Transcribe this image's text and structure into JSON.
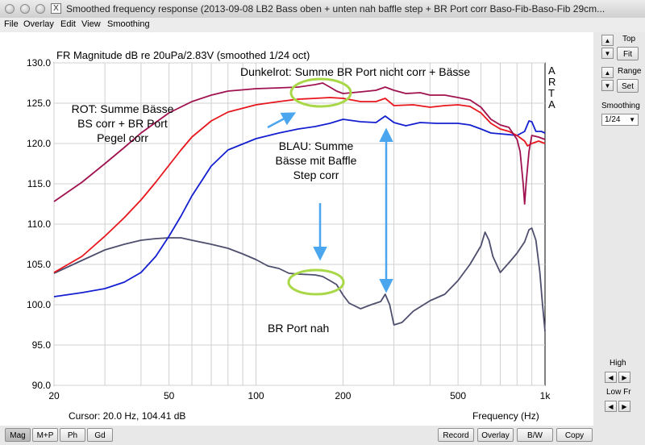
{
  "window": {
    "title": "Smoothed frequency response (2013-09-08 LB2 Bass oben + unten nah baffle step + BR Port corr Baso-Fib-Baso-Fib 29cm...",
    "app_icon": "X"
  },
  "menu": [
    "File",
    "Overlay",
    "Edit",
    "View",
    "Smoothing"
  ],
  "plot": {
    "heading": "FR Magnitude dB re 20uPa/2.83V (smoothed 1/24 oct)",
    "brand_letters": [
      "A",
      "R",
      "T",
      "A"
    ],
    "y_tick_labels": [
      "130.0",
      "125.0",
      "120.0",
      "115.0",
      "110.0",
      "105.0",
      "100.0",
      "95.0",
      "90.0"
    ],
    "x_tick_labels": [
      "20",
      "50",
      "100",
      "200",
      "500",
      "1k"
    ],
    "cursor_readout": "Cursor: 20.0 Hz, 104.41 dB",
    "x_axis_label": "Frequency (Hz)",
    "annotations": {
      "dunkelrot": "Dunkelrot: Summe BR Port nicht corr + Bässe",
      "rot": [
        "ROT: Summe Bässe",
        "BS corr + BR Port",
        "Pegel corr"
      ],
      "blau": [
        "BLAU: Summe",
        "Bässe mit Baffle",
        "Step corr"
      ],
      "port": "BR Port nah"
    }
  },
  "colors": {
    "darkred_curve": "#a0124f",
    "red_curve": "#e8161c",
    "blue_curve": "#1420d0",
    "port_curve": "#4e4e6e",
    "highlight_ellipse": "#a8d848",
    "annotation_arrow": "#4aa6ee"
  },
  "chart_data": {
    "type": "line",
    "x_scale": "log",
    "xlim": [
      20,
      1000
    ],
    "ylim": [
      90,
      130
    ],
    "grid": true,
    "title": "FR Magnitude dB re 20uPa/2.83V (smoothed 1/24 oct)",
    "xlabel": "Frequency (Hz)",
    "ylabel": "",
    "series": [
      {
        "name": "Dunkelrot: Summe BR Port nicht corr + Bässe",
        "color": "#a0124f",
        "points": [
          [
            20,
            112.8
          ],
          [
            25,
            115.2
          ],
          [
            30,
            117.5
          ],
          [
            35,
            119.5
          ],
          [
            40,
            121.3
          ],
          [
            50,
            123.8
          ],
          [
            60,
            125.2
          ],
          [
            70,
            126.0
          ],
          [
            80,
            126.5
          ],
          [
            100,
            126.8
          ],
          [
            120,
            126.9
          ],
          [
            140,
            127.0
          ],
          [
            160,
            127.3
          ],
          [
            170,
            127.5
          ],
          [
            180,
            127.0
          ],
          [
            190,
            126.5
          ],
          [
            200,
            126.2
          ],
          [
            230,
            126.4
          ],
          [
            260,
            126.6
          ],
          [
            280,
            127.0
          ],
          [
            300,
            126.6
          ],
          [
            330,
            126.2
          ],
          [
            370,
            126.3
          ],
          [
            400,
            126.0
          ],
          [
            450,
            126.0
          ],
          [
            500,
            125.7
          ],
          [
            550,
            125.4
          ],
          [
            600,
            124.5
          ],
          [
            650,
            123.0
          ],
          [
            700,
            122.3
          ],
          [
            750,
            122.0
          ],
          [
            800,
            120.5
          ],
          [
            820,
            119.0
          ],
          [
            840,
            115.0
          ],
          [
            850,
            112.5
          ],
          [
            860,
            115.0
          ],
          [
            880,
            119.0
          ],
          [
            900,
            121.0
          ],
          [
            950,
            120.8
          ],
          [
            1000,
            120.5
          ]
        ]
      },
      {
        "name": "ROT: Summe Bässe BS corr + BR Port Pegel corr",
        "color": "#e8161c",
        "points": [
          [
            20,
            104.0
          ],
          [
            25,
            106.0
          ],
          [
            30,
            108.5
          ],
          [
            35,
            110.8
          ],
          [
            40,
            113.0
          ],
          [
            45,
            115.2
          ],
          [
            50,
            117.3
          ],
          [
            55,
            119.2
          ],
          [
            60,
            120.8
          ],
          [
            70,
            122.8
          ],
          [
            80,
            123.9
          ],
          [
            100,
            124.8
          ],
          [
            120,
            125.2
          ],
          [
            140,
            125.5
          ],
          [
            160,
            125.6
          ],
          [
            180,
            125.7
          ],
          [
            200,
            125.6
          ],
          [
            230,
            125.2
          ],
          [
            260,
            125.2
          ],
          [
            280,
            125.6
          ],
          [
            300,
            124.7
          ],
          [
            350,
            124.8
          ],
          [
            400,
            124.5
          ],
          [
            450,
            124.7
          ],
          [
            500,
            124.8
          ],
          [
            550,
            124.6
          ],
          [
            600,
            123.8
          ],
          [
            650,
            122.5
          ],
          [
            700,
            121.8
          ],
          [
            750,
            121.5
          ],
          [
            800,
            121.0
          ],
          [
            850,
            120.3
          ],
          [
            870,
            119.7
          ],
          [
            900,
            120.0
          ],
          [
            950,
            120.3
          ],
          [
            1000,
            120.0
          ]
        ]
      },
      {
        "name": "BLAU: Summe Bässe mit Baffle Step corr",
        "color": "#1420d0",
        "points": [
          [
            20,
            101.0
          ],
          [
            25,
            101.5
          ],
          [
            30,
            102.0
          ],
          [
            35,
            102.8
          ],
          [
            40,
            104.0
          ],
          [
            45,
            106.0
          ],
          [
            50,
            108.5
          ],
          [
            55,
            111.0
          ],
          [
            60,
            113.5
          ],
          [
            70,
            117.2
          ],
          [
            80,
            119.2
          ],
          [
            100,
            120.6
          ],
          [
            120,
            121.3
          ],
          [
            140,
            121.8
          ],
          [
            160,
            122.1
          ],
          [
            180,
            122.5
          ],
          [
            200,
            123.0
          ],
          [
            230,
            122.7
          ],
          [
            260,
            122.6
          ],
          [
            280,
            123.4
          ],
          [
            300,
            122.6
          ],
          [
            330,
            122.2
          ],
          [
            370,
            122.6
          ],
          [
            420,
            122.5
          ],
          [
            500,
            122.5
          ],
          [
            550,
            122.3
          ],
          [
            600,
            121.8
          ],
          [
            650,
            121.3
          ],
          [
            700,
            121.2
          ],
          [
            750,
            121.1
          ],
          [
            800,
            121.0
          ],
          [
            850,
            121.5
          ],
          [
            880,
            122.8
          ],
          [
            900,
            122.7
          ],
          [
            930,
            121.5
          ],
          [
            970,
            121.5
          ],
          [
            1000,
            121.3
          ]
        ]
      },
      {
        "name": "BR Port nah",
        "color": "#4e4e6e",
        "points": [
          [
            20,
            103.9
          ],
          [
            25,
            105.5
          ],
          [
            30,
            106.8
          ],
          [
            35,
            107.5
          ],
          [
            40,
            108.0
          ],
          [
            45,
            108.2
          ],
          [
            50,
            108.3
          ],
          [
            55,
            108.3
          ],
          [
            60,
            108.0
          ],
          [
            70,
            107.5
          ],
          [
            80,
            107.0
          ],
          [
            90,
            106.3
          ],
          [
            100,
            105.6
          ],
          [
            110,
            104.8
          ],
          [
            120,
            104.5
          ],
          [
            130,
            103.9
          ],
          [
            140,
            103.8
          ],
          [
            160,
            103.7
          ],
          [
            170,
            103.5
          ],
          [
            180,
            103.0
          ],
          [
            190,
            102.5
          ],
          [
            200,
            101.2
          ],
          [
            210,
            100.2
          ],
          [
            230,
            99.5
          ],
          [
            250,
            100.0
          ],
          [
            270,
            100.4
          ],
          [
            280,
            101.3
          ],
          [
            290,
            100.0
          ],
          [
            300,
            97.5
          ],
          [
            320,
            97.8
          ],
          [
            350,
            99.2
          ],
          [
            400,
            100.5
          ],
          [
            450,
            101.3
          ],
          [
            500,
            103.0
          ],
          [
            550,
            105.0
          ],
          [
            600,
            107.3
          ],
          [
            620,
            109.0
          ],
          [
            640,
            108.0
          ],
          [
            660,
            106.0
          ],
          [
            700,
            104.0
          ],
          [
            750,
            105.2
          ],
          [
            800,
            106.4
          ],
          [
            850,
            107.8
          ],
          [
            880,
            109.3
          ],
          [
            900,
            109.5
          ],
          [
            930,
            108.0
          ],
          [
            960,
            104.0
          ],
          [
            980,
            100.0
          ],
          [
            1000,
            96.7
          ]
        ]
      }
    ]
  },
  "right_panel": {
    "top_label": "Top",
    "fit_label": "Fit",
    "range_label": "Range",
    "set_label": "Set",
    "smoothing_label": "Smoothing",
    "smoothing_value": "1/24",
    "high_label": "High",
    "lowfr_label": "Low Fr"
  },
  "bottom_tabs": [
    "Mag",
    "M+P",
    "Ph",
    "Gd"
  ],
  "bottom_buttons": [
    "Record",
    "Overlay",
    "B/W",
    "Copy"
  ]
}
